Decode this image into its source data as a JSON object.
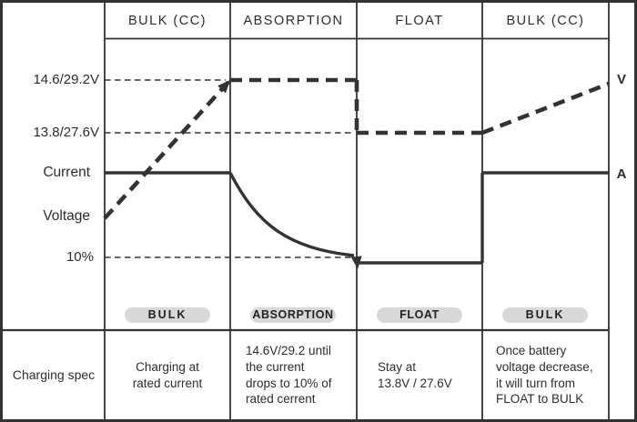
{
  "colors": {
    "line": "#333333",
    "text": "#2d2d2d",
    "pill_bg": "#d8d8d8",
    "background": "#ffffff"
  },
  "header": {
    "columns": [
      "BULK (CC)",
      "ABSORPTION",
      "FLOAT",
      "BULK (CC)"
    ]
  },
  "left_axis": {
    "labels": [
      "14.6/29.2V",
      "13.8/27.6V",
      "Current",
      "Voltage",
      "10%"
    ]
  },
  "right_axis": {
    "voltage_label": "V",
    "current_label": "A"
  },
  "pills": {
    "labels": [
      "BULK",
      "ABSORPTION",
      "FLOAT",
      "BULK"
    ]
  },
  "spec_row": {
    "row_label": "Charging spec",
    "cells": [
      "Charging at\nrated current",
      "14.6V/29.2 until\nthe current\ndrops to 10% of\nrated cerrent",
      "Stay at\n13.8V / 27.6V",
      "Once battery\nvoltage decrease,\nit will turn from\nFLOAT to BULK"
    ]
  },
  "chart_data": {
    "type": "line",
    "x_stages": [
      "BULK (CC)",
      "ABSORPTION",
      "FLOAT",
      "BULK (CC)"
    ],
    "y_reference_levels": {
      "absorption_voltage": "14.6/29.2V",
      "float_voltage": "13.8/27.6V",
      "rated_current": "Current",
      "ten_percent_current": "10%"
    },
    "reference_lines": [
      {
        "level": "absorption_voltage",
        "from_stage": 0,
        "to_stage": 1
      },
      {
        "level": "float_voltage",
        "from_stage": 0,
        "to_stage": 2
      },
      {
        "level": "ten_percent_current",
        "from_stage": 0,
        "to_stage": 2
      }
    ],
    "series": [
      {
        "name": "Voltage",
        "axis_label": "V",
        "line_style": "thick-dashed",
        "behavior": [
          {
            "stage": "BULK (CC)",
            "shape": "rise",
            "from": "start_low",
            "to": "absorption_voltage",
            "arrow": "end"
          },
          {
            "stage": "ABSORPTION",
            "shape": "flat",
            "at": "absorption_voltage"
          },
          {
            "stage": "FLOAT",
            "shape": "flat",
            "at": "float_voltage"
          },
          {
            "stage": "BULK (CC)",
            "shape": "rise",
            "from": "float_voltage",
            "to": "end_high"
          }
        ]
      },
      {
        "name": "Current",
        "axis_label": "A",
        "line_style": "thick-solid",
        "behavior": [
          {
            "stage": "BULK (CC)",
            "shape": "flat",
            "at": "rated_current"
          },
          {
            "stage": "ABSORPTION",
            "shape": "exp-decay",
            "from": "rated_current",
            "to": "ten_percent_current",
            "arrow": "end"
          },
          {
            "stage": "FLOAT",
            "shape": "flat",
            "at": "below_ten_percent"
          },
          {
            "stage": "BULK (CC)",
            "shape": "flat",
            "at": "rated_current"
          }
        ]
      }
    ]
  }
}
